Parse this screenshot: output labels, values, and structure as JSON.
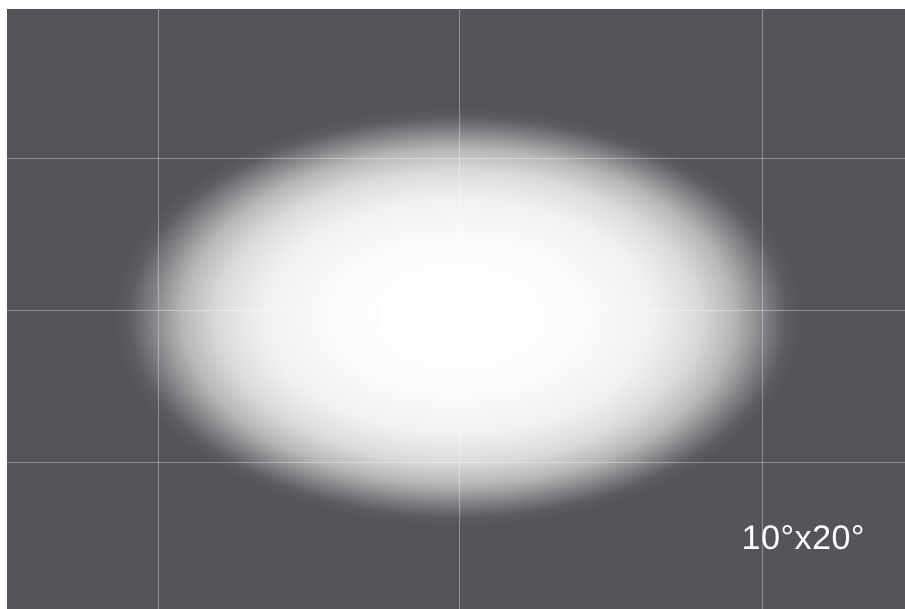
{
  "beam_angle_label": "10°x20°",
  "colors": {
    "background": "#545459",
    "grid": "#8a8a90",
    "beam": "#ffffff"
  }
}
